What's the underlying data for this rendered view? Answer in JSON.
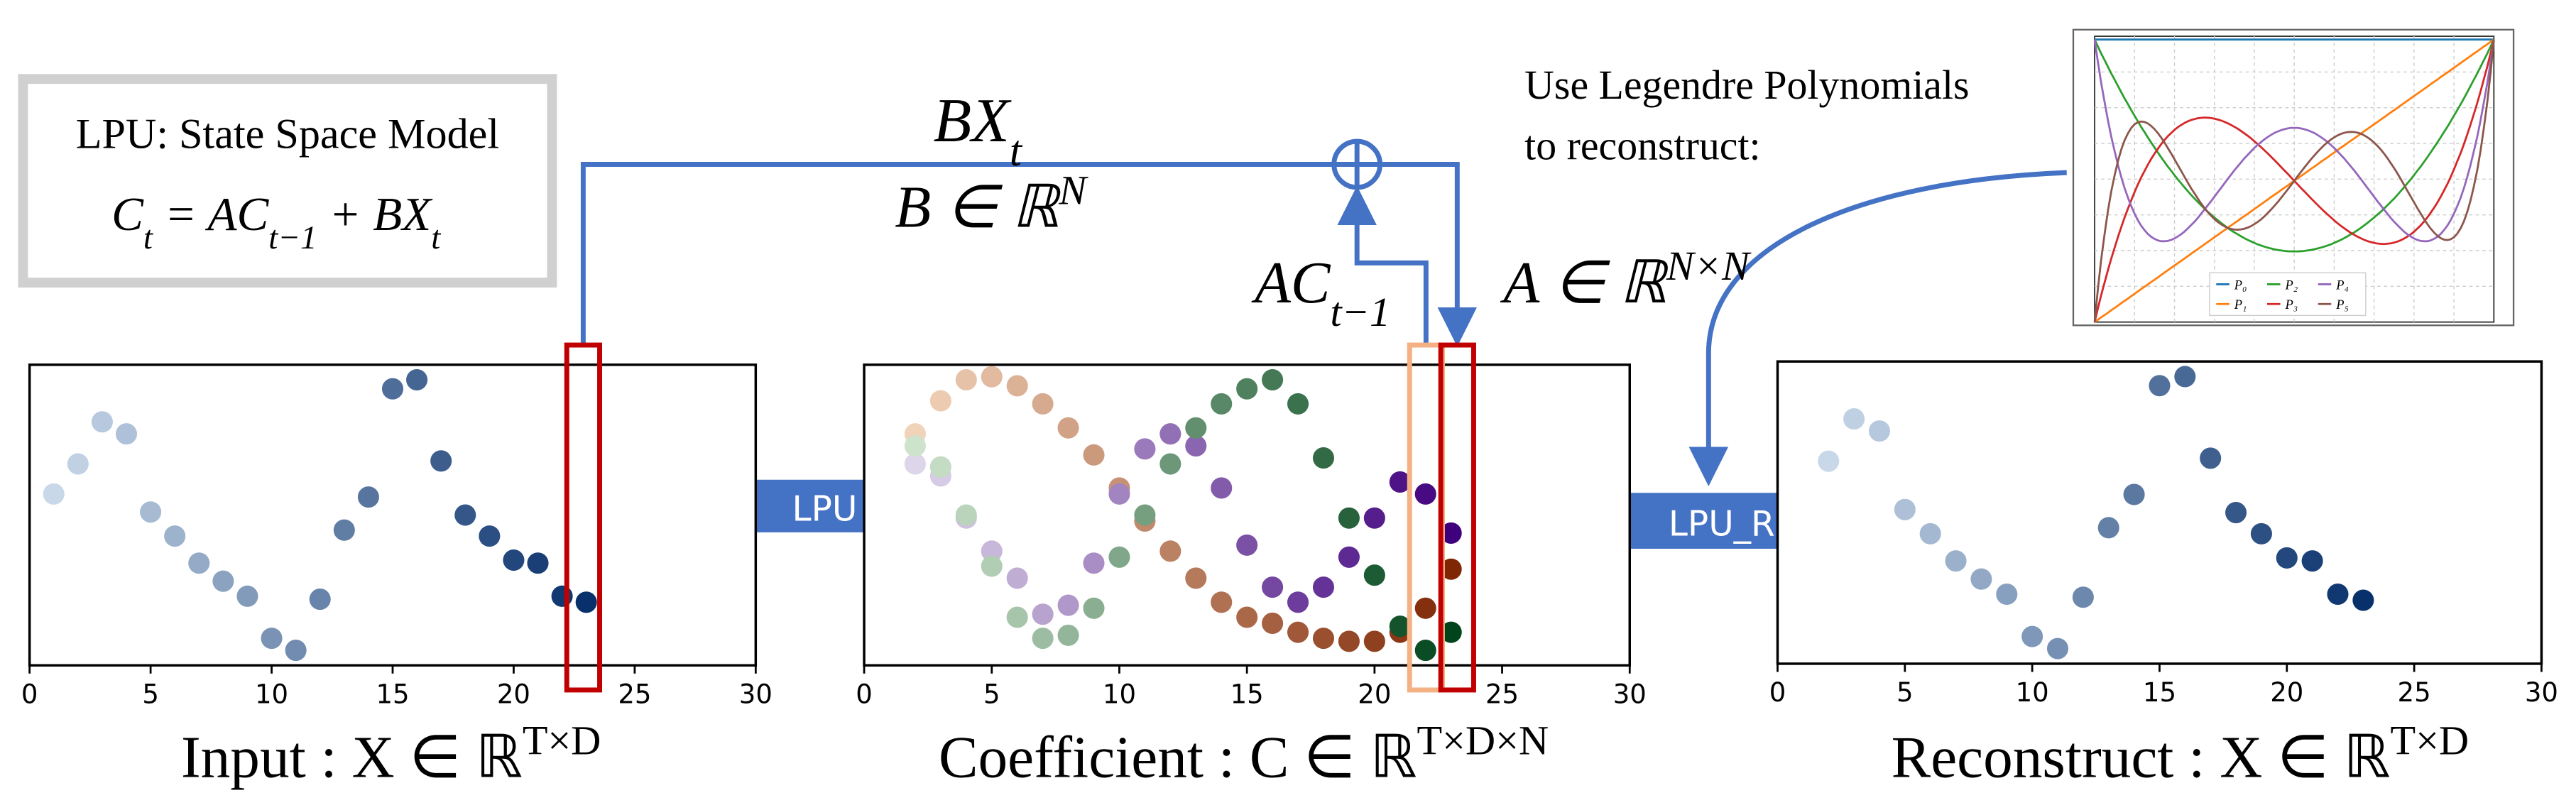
{
  "model_box": {
    "title": "LPU: State Space Model",
    "equation": [
      {
        "text": "C"
      },
      {
        "sub": "t"
      },
      {
        "text": " = AC"
      },
      {
        "sub": "t−1"
      },
      {
        "text": " + BX"
      },
      {
        "sub": "t"
      }
    ]
  },
  "bx": [
    {
      "text": "BX"
    },
    {
      "sub": "t"
    }
  ],
  "b_space": [
    {
      "text": "B ∈ ℝ"
    },
    {
      "sup": "N"
    }
  ],
  "ac": [
    {
      "text": "AC"
    },
    {
      "sub": "t−1"
    }
  ],
  "a_space": [
    {
      "text": "A ∈ ℝ"
    },
    {
      "sup": "N×N"
    }
  ],
  "reconstruct_note": [
    "Use Legendre Polynomials",
    "to reconstruct:"
  ],
  "lpu_arrow": "LPU",
  "lpu_r_arrow": "LPU_R",
  "legendre_legend": [
    {
      "name": "P₀",
      "color": "#1f77b4"
    },
    {
      "name": "P₁",
      "color": "#ff7f0e"
    },
    {
      "name": "P₂",
      "color": "#2ca02c"
    },
    {
      "name": "P₃",
      "color": "#d62728"
    },
    {
      "name": "P₄",
      "color": "#9467bd"
    },
    {
      "name": "P₅",
      "color": "#8c564b"
    }
  ],
  "panels": [
    {
      "caption": [
        {
          "text": "Input : X ∈ ℝ"
        },
        {
          "sup": "T×D"
        }
      ],
      "xlim": [
        0,
        30
      ],
      "xticks": [
        0,
        5,
        10,
        15,
        20,
        25,
        30
      ],
      "ylim": [
        0,
        10
      ],
      "series": [
        {
          "color_from": "#deebf7",
          "color_to": "#08306b",
          "x": [
            1,
            2,
            3,
            4,
            5,
            6,
            7,
            8,
            9,
            10,
            11,
            12,
            13,
            14,
            15,
            16,
            17,
            18,
            19,
            20,
            21,
            22,
            23
          ],
          "values": [
            5.7,
            6.7,
            8.1,
            7.7,
            5.1,
            4.3,
            3.4,
            2.8,
            2.3,
            0.9,
            0.5,
            2.2,
            4.5,
            5.6,
            9.2,
            9.5,
            6.8,
            5.0,
            4.3,
            3.5,
            3.4,
            2.3,
            2.1
          ]
        }
      ]
    },
    {
      "caption": [
        {
          "text": "Coefficient : C ∈ ℝ"
        },
        {
          "sup": "T×D×N"
        }
      ],
      "xlim": [
        0,
        30
      ],
      "xticks": [
        0,
        5,
        10,
        15,
        20,
        25,
        30
      ],
      "ylim": [
        0,
        10
      ],
      "series": [
        {
          "color_from": "#fee6ce",
          "color_to": "#7f2704",
          "x": [
            2,
            3,
            4,
            5,
            6,
            7,
            8,
            9,
            10,
            11,
            12,
            13,
            14,
            15,
            16,
            17,
            18,
            19,
            20,
            21,
            22,
            23
          ],
          "values": [
            7.7,
            8.8,
            9.5,
            9.6,
            9.3,
            8.7,
            7.9,
            7.0,
            5.9,
            4.8,
            3.8,
            2.9,
            2.1,
            1.6,
            1.4,
            1.1,
            0.9,
            0.8,
            0.8,
            1.1,
            1.9,
            3.2
          ]
        },
        {
          "color_from": "#efedf5",
          "color_to": "#3f007d",
          "x": [
            2,
            3,
            4,
            5,
            6,
            7,
            8,
            9,
            10,
            11,
            12,
            13,
            14,
            15,
            16,
            17,
            18,
            19,
            20,
            21,
            22,
            23
          ],
          "values": [
            6.7,
            6.3,
            4.9,
            3.8,
            2.9,
            1.7,
            2.0,
            3.4,
            5.7,
            7.2,
            7.7,
            7.3,
            5.9,
            4.0,
            2.6,
            2.1,
            2.6,
            3.6,
            4.9,
            6.1,
            5.7,
            4.4
          ]
        },
        {
          "color_from": "#e5f5e0",
          "color_to": "#00441b",
          "x": [
            2,
            3,
            4,
            5,
            6,
            7,
            8,
            9,
            10,
            11,
            12,
            13,
            14,
            15,
            16,
            17,
            18,
            19,
            20,
            21,
            22,
            23
          ],
          "values": [
            7.3,
            6.6,
            5.0,
            3.3,
            1.6,
            0.9,
            1.0,
            1.9,
            3.6,
            5.0,
            6.7,
            7.9,
            8.7,
            9.2,
            9.5,
            8.7,
            6.9,
            4.9,
            3.0,
            1.3,
            0.5,
            1.1
          ]
        }
      ]
    },
    {
      "caption": [
        {
          "text": "Reconstruct : X ∈ ℝ"
        },
        {
          "sup": "T×D"
        }
      ],
      "xlim": [
        0,
        30
      ],
      "xticks": [
        0,
        5,
        10,
        15,
        20,
        25,
        30
      ],
      "ylim": [
        0,
        10
      ],
      "series": [
        {
          "color_from": "#deebf7",
          "color_to": "#08306b",
          "x": [
            2,
            3,
            4,
            5,
            6,
            7,
            8,
            9,
            10,
            11,
            12,
            13,
            14,
            15,
            16,
            17,
            18,
            19,
            20,
            21,
            22,
            23
          ],
          "values": [
            6.7,
            8.1,
            7.7,
            5.1,
            4.3,
            3.4,
            2.8,
            2.3,
            0.9,
            0.5,
            2.2,
            4.5,
            5.6,
            9.2,
            9.5,
            6.8,
            5.0,
            4.3,
            3.5,
            3.4,
            2.3,
            2.1
          ]
        }
      ]
    }
  ]
}
